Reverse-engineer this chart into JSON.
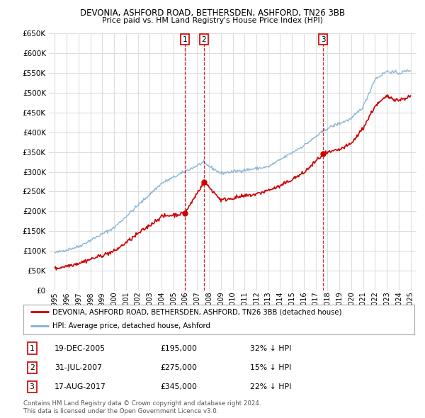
{
  "title": "DEVONIA, ASHFORD ROAD, BETHERSDEN, ASHFORD, TN26 3BB",
  "subtitle": "Price paid vs. HM Land Registry's House Price Index (HPI)",
  "legend_line1": "DEVONIA, ASHFORD ROAD, BETHERSDEN, ASHFORD, TN26 3BB (detached house)",
  "legend_line2": "HPI: Average price, detached house, Ashford",
  "footer1": "Contains HM Land Registry data © Crown copyright and database right 2024.",
  "footer2": "This data is licensed under the Open Government Licence v3.0.",
  "transactions": [
    {
      "num": 1,
      "date": "19-DEC-2005",
      "price": "£195,000",
      "hpi": "32% ↓ HPI",
      "year": 2005.97
    },
    {
      "num": 2,
      "date": "31-JUL-2007",
      "price": "£275,000",
      "hpi": "15% ↓ HPI",
      "year": 2007.58
    },
    {
      "num": 3,
      "date": "17-AUG-2017",
      "price": "£345,000",
      "hpi": "22% ↓ HPI",
      "year": 2017.63
    }
  ],
  "transaction_values": [
    195000,
    275000,
    345000
  ],
  "ylim": [
    0,
    650000
  ],
  "yticks": [
    0,
    50000,
    100000,
    150000,
    200000,
    250000,
    300000,
    350000,
    400000,
    450000,
    500000,
    550000,
    600000,
    650000
  ],
  "xlim_start": 1994.5,
  "xlim_end": 2025.5,
  "red_color": "#cc0000",
  "blue_color": "#7eb0d4",
  "grid_color": "#dddddd",
  "bg_color": "#ffffff",
  "title_fontsize": 8.5,
  "subtitle_fontsize": 7.8
}
